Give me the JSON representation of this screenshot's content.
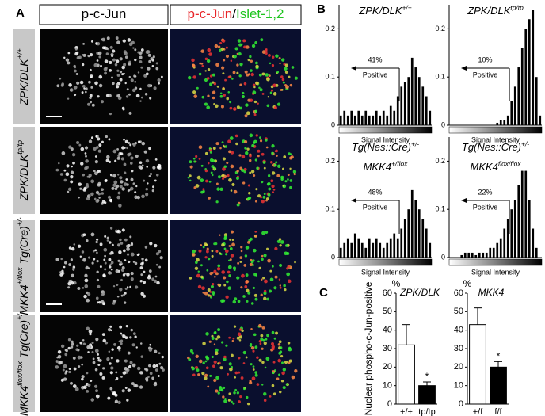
{
  "panel_labels": [
    "A",
    "B",
    "C"
  ],
  "panel_a": {
    "column_headers": [
      [
        {
          "text": "p-c-Jun",
          "color": "#000000"
        }
      ],
      [
        {
          "text": "p-c-Jun",
          "color": "#e8262a"
        },
        {
          "text": "/",
          "color": "#000000"
        },
        {
          "text": "Islet-1,2",
          "color": "#1fc41f"
        }
      ]
    ],
    "row_labels": [
      [
        {
          "text": "ZPK/DLK",
          "sup": "+/+"
        }
      ],
      [
        {
          "text": "ZPK/DLK",
          "sup": "tp/tp"
        }
      ],
      [
        {
          "text": "MKK4",
          "sup": "+/flox"
        },
        {
          "text": " Tg(Cre)",
          "sup": "+/-"
        }
      ],
      [
        {
          "text": "MKK4",
          "sup": "flox/flox"
        },
        {
          "text": " Tg(Cre)",
          "sup": "+/-"
        }
      ]
    ]
  },
  "chart_data": [
    {
      "type": "histogram",
      "title_lines": [
        [
          {
            "text": "ZPK/DLK",
            "sup": "+/+"
          }
        ]
      ],
      "categories": [
        null,
        null,
        null,
        null,
        null,
        null,
        null,
        null,
        null,
        null,
        null,
        null,
        null,
        null,
        null,
        null,
        null,
        null,
        null,
        null,
        null,
        null,
        null,
        null,
        null,
        null
      ],
      "values": [
        0.02,
        0.03,
        0.02,
        0.03,
        0.02,
        0.03,
        0.02,
        0.03,
        0.02,
        0.02,
        0.03,
        0.02,
        0.03,
        0.02,
        0.04,
        0.03,
        0.06,
        0.08,
        0.09,
        0.1,
        0.14,
        0.12,
        0.1,
        0.08,
        0.06,
        0.03
      ],
      "color": "#000000",
      "ylim": [
        0,
        0.25
      ],
      "yticks": [
        0,
        0.1,
        0.2
      ],
      "annotation": {
        "percent": "41%",
        "label": "Positive"
      },
      "xlabel": "Signal Intensity"
    },
    {
      "type": "histogram",
      "title_lines": [
        [
          {
            "text": "ZPK/DLK",
            "sup": "tp/tp"
          }
        ]
      ],
      "categories": [
        null,
        null,
        null,
        null,
        null,
        null,
        null,
        null,
        null,
        null,
        null,
        null,
        null,
        null,
        null,
        null,
        null,
        null,
        null,
        null,
        null,
        null,
        null,
        null,
        null,
        null
      ],
      "values": [
        0,
        0,
        0,
        0,
        0,
        0,
        0,
        0,
        0,
        0,
        0,
        0,
        0,
        0.005,
        0.01,
        0.01,
        0.02,
        0.05,
        0.08,
        0.12,
        0.16,
        0.2,
        0.22,
        0.24,
        0.1,
        0.02
      ],
      "color": "#000000",
      "ylim": [
        0,
        0.25
      ],
      "yticks": [
        0,
        0.1,
        0.2
      ],
      "annotation": {
        "percent": "10%",
        "label": "Positive"
      },
      "xlabel": "Signal Intensity"
    },
    {
      "type": "histogram",
      "title_lines": [
        [
          {
            "text": "Tg(Nes::Cre)",
            "sup": "+/-"
          }
        ],
        [
          {
            "text": "MKK4",
            "sup": "+/flox"
          }
        ]
      ],
      "categories": [
        null,
        null,
        null,
        null,
        null,
        null,
        null,
        null,
        null,
        null,
        null,
        null,
        null,
        null,
        null,
        null,
        null,
        null,
        null,
        null,
        null,
        null,
        null,
        null,
        null,
        null
      ],
      "values": [
        0.02,
        0.03,
        0.04,
        0.03,
        0.05,
        0.04,
        0.03,
        0.02,
        0.04,
        0.03,
        0.04,
        0.03,
        0.02,
        0.03,
        0.04,
        0.05,
        0.04,
        0.06,
        0.08,
        0.1,
        0.14,
        0.12,
        0.1,
        0.08,
        0.06,
        0.03
      ],
      "color": "#000000",
      "ylim": [
        0,
        0.25
      ],
      "yticks": [
        0,
        0.1,
        0.2
      ],
      "annotation": {
        "percent": "48%",
        "label": "Positive"
      },
      "xlabel": "Signal Intensity"
    },
    {
      "type": "histogram",
      "title_lines": [
        [
          {
            "text": "Tg(Nes::Cre)",
            "sup": "+/-"
          }
        ],
        [
          {
            "text": "MKK4",
            "sup": "flox/flox"
          }
        ]
      ],
      "categories": [
        null,
        null,
        null,
        null,
        null,
        null,
        null,
        null,
        null,
        null,
        null,
        null,
        null,
        null,
        null,
        null,
        null,
        null,
        null,
        null,
        null,
        null,
        null,
        null,
        null,
        null
      ],
      "values": [
        0,
        0,
        0,
        0.005,
        0.01,
        0.01,
        0.01,
        0.005,
        0.01,
        0.01,
        0.01,
        0.02,
        0.02,
        0.03,
        0.04,
        0.06,
        0.08,
        0.1,
        0.12,
        0.15,
        0.18,
        0.18,
        0.12,
        0.06,
        0.02,
        0
      ],
      "color": "#000000",
      "ylim": [
        0,
        0.25
      ],
      "yticks": [
        0,
        0.1,
        0.2
      ],
      "annotation": {
        "percent": "22%",
        "label": "Positive"
      },
      "xlabel": "Signal Intensity"
    },
    {
      "type": "bar",
      "title": "ZPK/DLK",
      "unit": "%",
      "ylabel": "Nuclear phospho-c-Jun-positive",
      "categories": [
        "+/+",
        "tp/tp"
      ],
      "values": [
        32,
        10
      ],
      "errors": [
        11,
        2
      ],
      "colors": [
        "#ffffff",
        "#000000"
      ],
      "annotation": "*",
      "ylim": [
        0,
        60
      ],
      "yticks": [
        0,
        10,
        20,
        30,
        40,
        50,
        60
      ]
    },
    {
      "type": "bar",
      "title": "MKK4",
      "unit": "%",
      "categories": [
        "+/f",
        "f/f"
      ],
      "values": [
        43,
        20
      ],
      "errors": [
        9,
        3
      ],
      "colors": [
        "#ffffff",
        "#000000"
      ],
      "annotation": "*",
      "ylim": [
        0,
        60
      ],
      "yticks": [
        0,
        10,
        20,
        30,
        40,
        50,
        60
      ]
    }
  ]
}
